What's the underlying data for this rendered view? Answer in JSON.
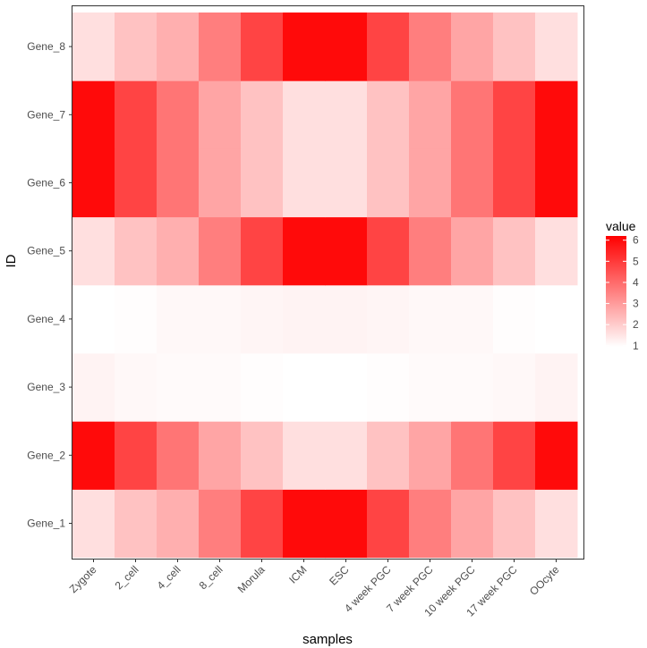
{
  "chart_data": {
    "type": "heatmap",
    "xlabel": "samples",
    "ylabel": "ID",
    "x_categories": [
      "Zygote",
      "2_cell",
      "4_cell",
      "8_cell",
      "Morula",
      "ICM",
      "ESC",
      "4 week PGC",
      "7 week PGC",
      "10 week PGC",
      "17 week PGC",
      "OOcyte"
    ],
    "y_categories": [
      "Gene_1",
      "Gene_2",
      "Gene_3",
      "Gene_4",
      "Gene_5",
      "Gene_6",
      "Gene_7",
      "Gene_8"
    ],
    "values": [
      [
        1.6,
        2.2,
        2.6,
        3.6,
        4.8,
        6.0,
        6.0,
        4.8,
        3.6,
        2.8,
        2.2,
        1.6
      ],
      [
        6.0,
        4.8,
        3.8,
        2.8,
        2.2,
        1.6,
        1.6,
        2.2,
        2.8,
        3.8,
        4.8,
        6.0
      ],
      [
        1.2,
        1.1,
        1.05,
        1.05,
        1.0,
        0.95,
        0.95,
        1.0,
        1.05,
        1.05,
        1.1,
        1.2
      ],
      [
        0.95,
        1.0,
        1.1,
        1.1,
        1.15,
        1.2,
        1.2,
        1.15,
        1.1,
        1.1,
        1.0,
        0.95
      ],
      [
        1.6,
        2.2,
        2.6,
        3.6,
        4.8,
        6.0,
        6.0,
        4.8,
        3.6,
        2.8,
        2.2,
        1.6
      ],
      [
        6.0,
        4.8,
        3.8,
        2.8,
        2.2,
        1.6,
        1.6,
        2.2,
        2.8,
        3.8,
        4.8,
        6.0
      ],
      [
        6.0,
        4.8,
        3.8,
        2.8,
        2.2,
        1.6,
        1.6,
        2.2,
        2.8,
        3.8,
        4.8,
        6.0
      ],
      [
        1.6,
        2.2,
        2.6,
        3.6,
        4.8,
        6.0,
        6.0,
        4.8,
        3.6,
        2.8,
        2.2,
        1.6
      ]
    ],
    "value_range": [
      0.95,
      6.2
    ],
    "color_low": "#ffffff",
    "color_high": "#ff0000",
    "legend": {
      "title": "value",
      "position": "right",
      "breaks": [
        1,
        2,
        3,
        4,
        5,
        6
      ]
    },
    "grid": false
  }
}
